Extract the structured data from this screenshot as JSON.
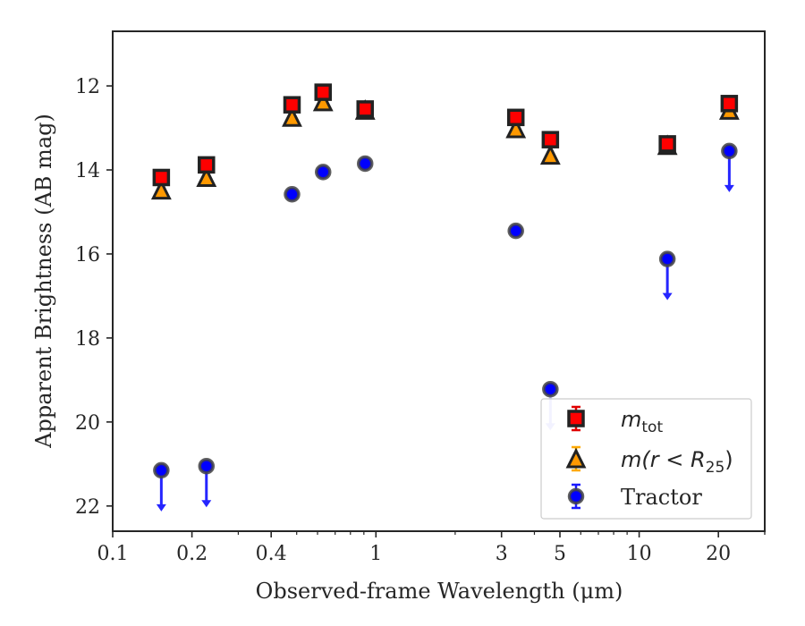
{
  "chart_data": {
    "type": "scatter",
    "title": "",
    "xlabel": "Observed-frame Wavelength (μm)",
    "ylabel": "Apparent Brightness (AB mag)",
    "xscale": "log",
    "xlim": [
      0.1,
      30
    ],
    "ylim": [
      22.6,
      10.7
    ],
    "y_inverted": true,
    "grid": false,
    "legend_position": "lower-right",
    "x_ticks": [
      {
        "value": 0.1,
        "label": "0.1"
      },
      {
        "value": 0.2,
        "label": "0.2"
      },
      {
        "value": 0.4,
        "label": "0.4"
      },
      {
        "value": 1,
        "label": "1"
      },
      {
        "value": 3,
        "label": "3"
      },
      {
        "value": 5,
        "label": "5"
      },
      {
        "value": 10,
        "label": "10"
      },
      {
        "value": 20,
        "label": "20"
      }
    ],
    "y_ticks": [
      {
        "value": 12,
        "label": "12"
      },
      {
        "value": 14,
        "label": "14"
      },
      {
        "value": 16,
        "label": "16"
      },
      {
        "value": 18,
        "label": "18"
      },
      {
        "value": 20,
        "label": "20"
      },
      {
        "value": 22,
        "label": "22"
      }
    ],
    "series": [
      {
        "name": "m_tot",
        "legend_label": {
          "base": "m",
          "sub": "tot"
        },
        "marker": "square",
        "color": "#ff0000",
        "edge": "#222222",
        "errorbar_color": "#e00000",
        "points": [
          {
            "x": 0.153,
            "y": 14.18
          },
          {
            "x": 0.227,
            "y": 13.88
          },
          {
            "x": 0.48,
            "y": 12.45
          },
          {
            "x": 0.63,
            "y": 12.15
          },
          {
            "x": 0.91,
            "y": 12.55
          },
          {
            "x": 3.4,
            "y": 12.75
          },
          {
            "x": 4.6,
            "y": 13.28
          },
          {
            "x": 12.8,
            "y": 13.38
          },
          {
            "x": 22.0,
            "y": 12.42
          }
        ]
      },
      {
        "name": "m(r<R25)",
        "legend_label": {
          "base": "m(r < R",
          "sub": "25",
          "tail": ")"
        },
        "marker": "triangle",
        "color": "#ff9900",
        "edge": "#222222",
        "errorbar_color": "#ffaa00",
        "points": [
          {
            "x": 0.153,
            "y": 14.48
          },
          {
            "x": 0.227,
            "y": 14.18
          },
          {
            "x": 0.48,
            "y": 12.75
          },
          {
            "x": 0.63,
            "y": 12.38
          },
          {
            "x": 0.91,
            "y": 12.58
          },
          {
            "x": 3.4,
            "y": 13.02
          },
          {
            "x": 4.6,
            "y": 13.65
          },
          {
            "x": 12.8,
            "y": 13.42
          },
          {
            "x": 22.0,
            "y": 12.58
          }
        ]
      },
      {
        "name": "Tractor",
        "legend_label": {
          "base": "Tractor"
        },
        "marker": "circle",
        "color": "#0000ff",
        "edge": "#444444",
        "errorbar_color": "#1a1aff",
        "points": [
          {
            "x": 0.153,
            "y": 21.15,
            "upper_limit": true
          },
          {
            "x": 0.227,
            "y": 21.05,
            "upper_limit": true
          },
          {
            "x": 0.48,
            "y": 14.58
          },
          {
            "x": 0.63,
            "y": 14.05
          },
          {
            "x": 0.91,
            "y": 13.85
          },
          {
            "x": 3.4,
            "y": 15.45
          },
          {
            "x": 4.6,
            "y": 19.22,
            "upper_limit": true
          },
          {
            "x": 12.8,
            "y": 16.12,
            "upper_limit": true
          },
          {
            "x": 22.0,
            "y": 13.55,
            "upper_limit": true
          }
        ]
      }
    ]
  }
}
